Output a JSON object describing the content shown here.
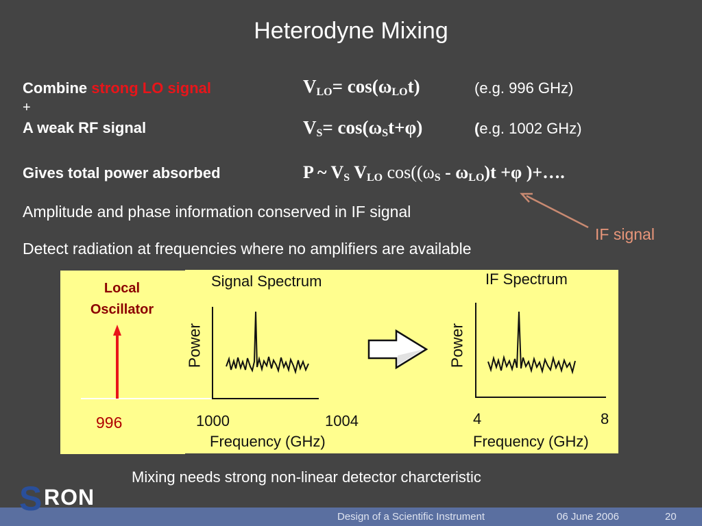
{
  "title": "Heterodyne Mixing",
  "rows": {
    "combine_prefix": "Combine ",
    "combine_red": "strong LO signal",
    "plus": "+",
    "weak_rf": "A weak RF signal",
    "gives": "Gives total power absorbed"
  },
  "equations": {
    "vlo": {
      "lhs": "V",
      "lhs_sub": "LO",
      "rhs": "= cos(ω",
      "rhs_sub": "LO",
      "tail": "t)",
      "example": "(e.g. 996 GHz)"
    },
    "vs": {
      "lhs": "V",
      "lhs_sub": "S",
      "rhs": "= cos(ω",
      "rhs_sub": "S",
      "tail": "t+φ)",
      "example_paren": "(",
      "example": "e.g. 1002 GHz)"
    },
    "power": {
      "p": "P ~ V",
      "p_sub1": "S",
      "v2": " V",
      "p_sub2": "LO",
      "cos": " cos((ω",
      "sub3": "S",
      "minus": " - ω",
      "sub4": "LO",
      "tail": ")t +φ )+…."
    }
  },
  "bullets": [
    "Amplitude and phase information conserved in IF signal",
    "Detect radiation at frequencies where no amplifiers are available"
  ],
  "if_signal_label": "IF signal",
  "diagram": {
    "lo_label_line1": "Local",
    "lo_label_line2": "Oscillator",
    "lo_freq": "996",
    "signal_title": "Signal Spectrum",
    "if_title": "IF Spectrum",
    "power_label": "Power",
    "signal_tick_left": "1000",
    "signal_tick_right": "1004",
    "if_tick_left": "4",
    "if_tick_right": "8",
    "freq_label": "Frequency (GHz)"
  },
  "caption": "Mixing needs strong non-linear detector charcteristic",
  "logo_text": "RON",
  "logo_letter": "S",
  "footer": {
    "course": "Design of a Scientific Instrument",
    "date": "06 June 2006",
    "page": "20"
  },
  "colors": {
    "background": "#444444",
    "panel": "#fffe8e",
    "accent_red": "#e8151a",
    "if_label": "#e8967a",
    "footer": "#5a6fa0"
  }
}
